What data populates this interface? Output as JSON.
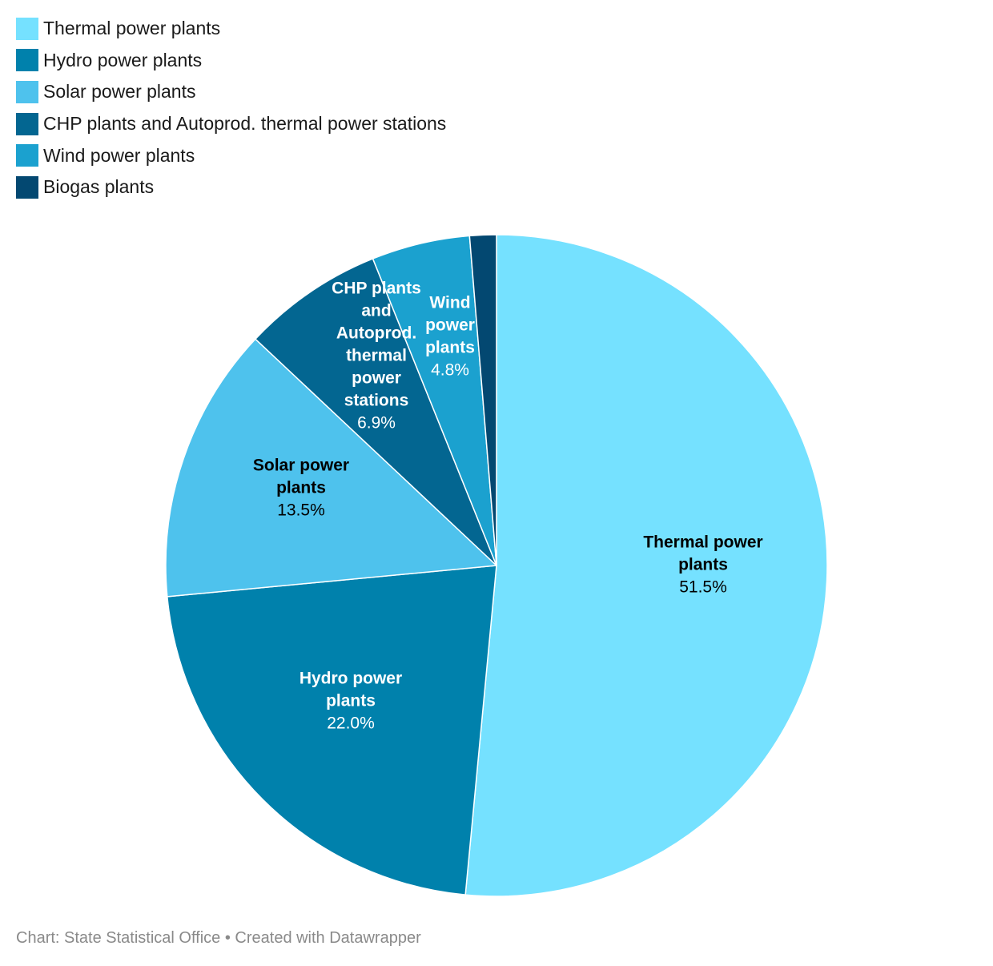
{
  "chart_data": {
    "type": "pie",
    "title": "",
    "legend_position": "top-left",
    "slices": [
      {
        "name": "Thermal power plants",
        "label_lines": [
          "Thermal power",
          "plants"
        ],
        "value": 51.5,
        "value_label": "51.5%",
        "color": "#75e1ff",
        "text_color": "#000000"
      },
      {
        "name": "Hydro power plants",
        "label_lines": [
          "Hydro power",
          "plants"
        ],
        "value": 22.0,
        "value_label": "22.0%",
        "color": "#0081ac",
        "text_color": "#ffffff"
      },
      {
        "name": "Solar power plants",
        "label_lines": [
          "Solar power",
          "plants"
        ],
        "value": 13.5,
        "value_label": "13.5%",
        "color": "#4ec2ed",
        "text_color": "#000000"
      },
      {
        "name": "CHP plants and Autoprod. thermal power stations",
        "label_lines": [
          "CHP plants",
          "and",
          "Autoprod.",
          "thermal",
          "power",
          "stations"
        ],
        "value": 6.9,
        "value_label": "6.9%",
        "color": "#036691",
        "text_color": "#ffffff"
      },
      {
        "name": "Wind power plants",
        "label_lines": [
          "Wind",
          "power",
          "plants"
        ],
        "value": 4.8,
        "value_label": "4.8%",
        "color": "#1ba1cf",
        "text_color": "#ffffff"
      },
      {
        "name": "Biogas plants",
        "label_lines": [],
        "value": 1.3,
        "value_label": "",
        "color": "#034871",
        "text_color": "#ffffff"
      }
    ]
  },
  "footer": {
    "text": "Chart: State Statistical Office • Created with Datawrapper"
  }
}
